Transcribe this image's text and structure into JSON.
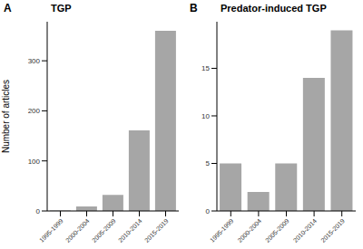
{
  "chart_data": [
    {
      "type": "bar",
      "title": "TGP",
      "annotations": [
        "A"
      ],
      "categories": [
        "1995-1999",
        "2000-2004",
        "2005-2009",
        "2010-2014",
        "2015-2019"
      ],
      "values": [
        1,
        9,
        32,
        161,
        360
      ],
      "color": "#a6a6a6",
      "ylim": [
        0,
        378
      ],
      "yticks": [
        0,
        100,
        200,
        300
      ],
      "y_label": "Number of articles"
    },
    {
      "type": "bar",
      "title": "Predator-induced TGP",
      "annotations": [
        "B"
      ],
      "categories": [
        "1995-1999",
        "2000-2004",
        "2005-2009",
        "2010-2014",
        "2015-2019"
      ],
      "values": [
        5,
        2,
        5,
        14,
        19
      ],
      "color": "#a6a6a6",
      "ylim": [
        0,
        19.9
      ],
      "yticks": [
        0,
        5,
        10,
        15
      ]
    }
  ]
}
